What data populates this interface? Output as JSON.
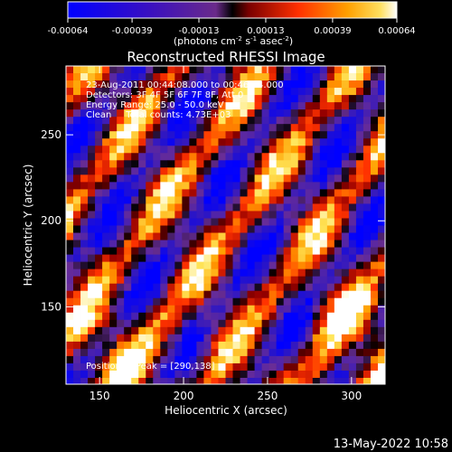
{
  "chart_data": {
    "type": "heatmap",
    "title": "Reconstructed RHESSI Image",
    "xlabel": "Heliocentric X (arcsec)",
    "ylabel": "Heliocentric Y (arcsec)",
    "xlim": [
      130,
      320
    ],
    "ylim": [
      105,
      290
    ],
    "xticks": [
      150,
      200,
      250,
      300
    ],
    "yticks": [
      150,
      200,
      250
    ],
    "colorbar": {
      "ticks": [
        "-0.00064",
        "-0.00039",
        "-0.00013",
        "0.00013",
        "0.00039",
        "0.00064"
      ],
      "unit_main": "(photons cm",
      "unit_exp1": "-2",
      "unit_mid": " s",
      "unit_exp2": "-1",
      "unit_mid2": " asec",
      "unit_exp3": "-2",
      "unit_end": ")",
      "vmin": -0.00064,
      "vmax": 0.00064
    },
    "annotations": [
      "23-Aug-2011 00:44:08.000 to 00:46:44.000",
      "Detectors: 3F 4F 5F 6F 7F 8F, Att 0",
      "Energy Range: 25.0 - 50.0 keV",
      "Clean     Total counts: 4.73E+03"
    ],
    "peak_label": "Position of Peak = [290,138]",
    "peak": [
      290,
      138
    ],
    "pattern": "diagonal bands of alternating positive (yellow/orange/red) and negative (purple/blue) intensity, oriented lower-left to upper-right"
  },
  "footer": {
    "date": "13-May-2022 10:58"
  },
  "colors": {
    "background": "#000000",
    "text": "#ffffff"
  }
}
